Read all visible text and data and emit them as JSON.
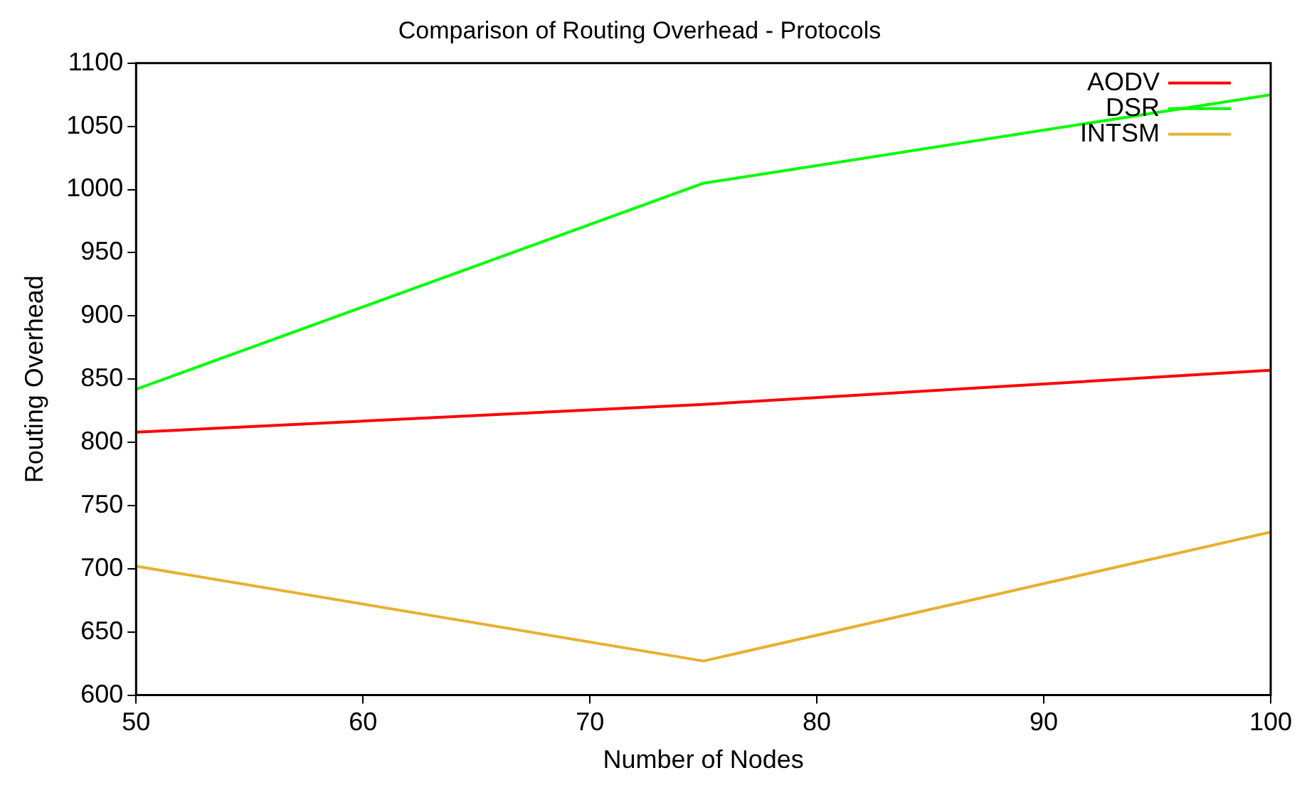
{
  "chart_data": {
    "type": "line",
    "title": "Comparison of Routing Overhead - Protocols",
    "xlabel": "Number of Nodes",
    "ylabel": "Routing Overhead",
    "x": [
      50,
      75,
      100
    ],
    "series": [
      {
        "name": "AODV",
        "color": "#ff0000",
        "values": [
          808,
          830,
          857
        ]
      },
      {
        "name": "DSR",
        "color": "#00ff00",
        "values": [
          842,
          1005,
          1075
        ]
      },
      {
        "name": "INTSM",
        "color": "#e8b030",
        "values": [
          702,
          627,
          729
        ]
      }
    ],
    "xlim": [
      50,
      100
    ],
    "xticks": [
      50,
      60,
      70,
      80,
      90,
      100
    ],
    "ylim": [
      600,
      1100
    ],
    "yticks": [
      600,
      650,
      700,
      750,
      800,
      850,
      900,
      950,
      1000,
      1050,
      1100
    ],
    "grid": false,
    "legend": "top right",
    "marker": "none",
    "line_style": "solid"
  }
}
